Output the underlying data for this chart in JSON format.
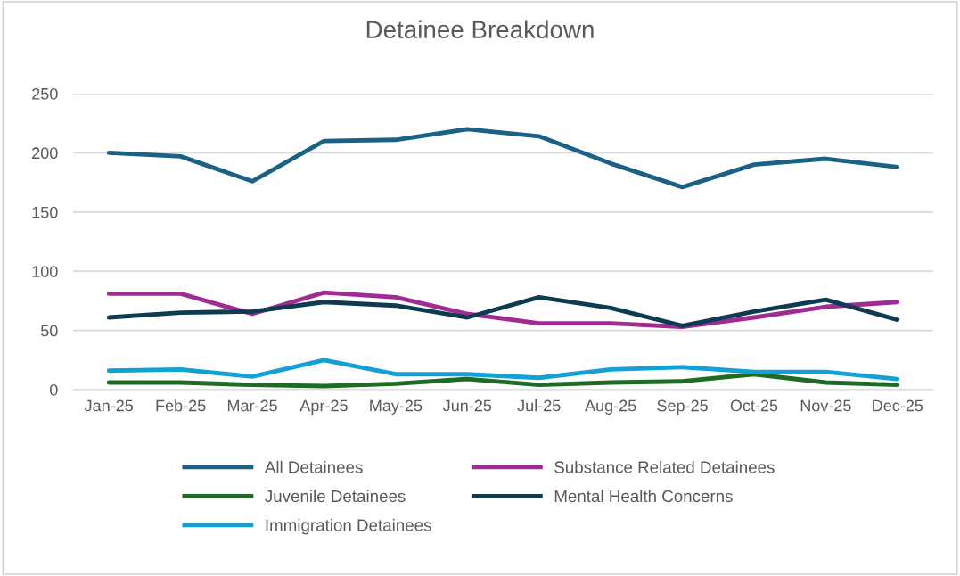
{
  "chart_data": {
    "type": "line",
    "title": "Detainee Breakdown",
    "categories": [
      "Jan-25",
      "Feb-25",
      "Mar-25",
      "Apr-25",
      "May-25",
      "Jun-25",
      "Jul-25",
      "Aug-25",
      "Sep-25",
      "Oct-25",
      "Nov-25",
      "Dec-25"
    ],
    "series": [
      {
        "name": "All Detainees",
        "color": "#1a6185",
        "values": [
          200,
          197,
          176,
          210,
          211,
          220,
          214,
          191,
          171,
          190,
          195,
          188
        ]
      },
      {
        "name": "Juvenile Detainees",
        "color": "#1e6b23",
        "values": [
          6,
          6,
          4,
          3,
          5,
          9,
          4,
          6,
          7,
          13,
          6,
          4
        ]
      },
      {
        "name": "Immigration Detainees",
        "color": "#12a0d6",
        "values": [
          16,
          17,
          11,
          25,
          13,
          13,
          10,
          17,
          19,
          15,
          15,
          9
        ]
      },
      {
        "name": "Substance Related Detainees",
        "color": "#a02b93",
        "values": [
          81,
          81,
          64,
          82,
          78,
          64,
          56,
          56,
          53,
          61,
          70,
          74
        ]
      },
      {
        "name": "Mental Health Concerns",
        "color": "#0e3a52",
        "values": [
          61,
          65,
          66,
          74,
          71,
          61,
          78,
          69,
          54,
          66,
          76,
          59
        ]
      }
    ],
    "ylim": [
      0,
      250
    ],
    "yticks": [
      0,
      50,
      100,
      150,
      200,
      250
    ],
    "grid": "y",
    "legend": "bottom",
    "marker": "none",
    "line_style": "solid"
  }
}
